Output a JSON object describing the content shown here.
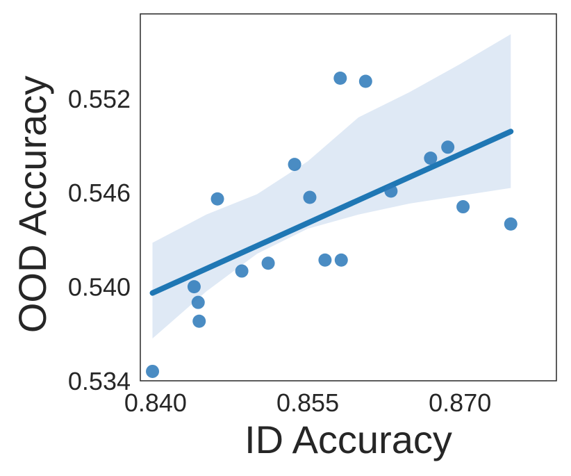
{
  "chart_data": {
    "type": "scatter",
    "title": "",
    "xlabel": "ID Accuracy",
    "ylabel": "OOD Accuracy",
    "xlim": [
      0.8385,
      0.8795
    ],
    "ylim": [
      0.534,
      0.5574
    ],
    "xticks": [
      0.84,
      0.855,
      0.87
    ],
    "xtick_labels": [
      "0.840",
      "0.855",
      "0.870"
    ],
    "yticks": [
      0.534,
      0.54,
      0.546,
      0.552
    ],
    "ytick_labels": [
      "0.534",
      "0.540",
      "0.546",
      "0.552"
    ],
    "grid": false,
    "points": {
      "x": [
        0.8397,
        0.8438,
        0.8442,
        0.8443,
        0.8461,
        0.8485,
        0.8511,
        0.8537,
        0.8552,
        0.8567,
        0.8582,
        0.8583,
        0.8607,
        0.8632,
        0.8671,
        0.8688,
        0.8703,
        0.875
      ],
      "y": [
        0.5346,
        0.54,
        0.539,
        0.5378,
        0.5456,
        0.541,
        0.5415,
        0.5478,
        0.5457,
        0.5417,
        0.5533,
        0.5417,
        0.5531,
        0.5461,
        0.5482,
        0.5489,
        0.5451,
        0.544
      ]
    },
    "regression_line": {
      "x": [
        0.8397,
        0.875
      ],
      "y": [
        0.5396,
        0.5499
      ]
    },
    "confidence_band": {
      "x": [
        0.8397,
        0.845,
        0.85,
        0.855,
        0.86,
        0.865,
        0.87,
        0.875
      ],
      "lower": [
        0.5367,
        0.5397,
        0.5421,
        0.5437,
        0.5446,
        0.5453,
        0.5458,
        0.5463
      ],
      "upper": [
        0.5428,
        0.5446,
        0.5459,
        0.548,
        0.5508,
        0.5524,
        0.5542,
        0.5561
      ]
    },
    "colors": {
      "points": "#2a78b8",
      "line": "#1f77b4",
      "band": "#dfe9f5",
      "axes": "#262626"
    }
  }
}
